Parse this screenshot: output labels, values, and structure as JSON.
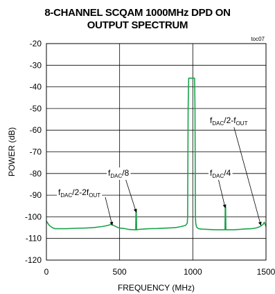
{
  "chart_data": {
    "type": "line",
    "title_lines": [
      "8-CHANNEL SCQAM 1000MHz DPD ON",
      "OUTPUT SPECTRUM"
    ],
    "corner_label": "toc07",
    "xlabel": "FREQUENCY (MHz)",
    "ylabel": "POWER (dB)",
    "xlim": [
      0,
      1500
    ],
    "ylim": [
      -120,
      -20
    ],
    "x_ticks": [
      0,
      500,
      1000,
      1500
    ],
    "y_ticks": [
      -20,
      -30,
      -40,
      -50,
      -60,
      -70,
      -80,
      -90,
      -100,
      -110,
      -120
    ],
    "grid": true,
    "series": [
      {
        "color": "#1aa24a",
        "x": [
          0,
          10,
          20,
          40,
          60,
          80,
          100,
          140,
          200,
          260,
          320,
          380,
          420,
          440,
          460,
          480,
          500,
          540,
          560,
          600,
          610,
          612,
          614,
          616,
          618,
          630,
          660,
          700,
          760,
          820,
          880,
          920,
          950,
          962,
          965,
          968,
          972,
          980,
          990,
          1000,
          1005,
          1012,
          1015,
          1018,
          1020,
          1025,
          1030,
          1040,
          1060,
          1100,
          1150,
          1180,
          1200,
          1215,
          1220,
          1222,
          1224,
          1226,
          1228,
          1240,
          1280,
          1320,
          1360,
          1400,
          1420,
          1440,
          1460,
          1470,
          1480,
          1488,
          1495,
          1500
        ],
        "y": [
          -102,
          -103,
          -104,
          -105,
          -105.5,
          -105.5,
          -105.5,
          -105.5,
          -105.3,
          -105.2,
          -105,
          -104.5,
          -104,
          -103.5,
          -104,
          -104.7,
          -105.2,
          -105.5,
          -105.8,
          -106,
          -106,
          -97,
          -97,
          -106,
          -106,
          -105.8,
          -105.7,
          -105.5,
          -105.4,
          -105.2,
          -105,
          -104.5,
          -104,
          -103,
          -100,
          -50,
          -36,
          -36,
          -36,
          -36,
          -36,
          -36,
          -50,
          -100,
          -103,
          -104.5,
          -105,
          -105.5,
          -105.7,
          -105.8,
          -106,
          -106,
          -106,
          -106,
          -106,
          -95,
          -95,
          -106,
          -106,
          -106,
          -106,
          -105.8,
          -105.6,
          -105.5,
          -105.3,
          -105,
          -104.5,
          -104,
          -103.5,
          -102.5,
          -103.5,
          -104.5
        ]
      }
    ],
    "annotations": [
      {
        "base": "f",
        "sub1": "DAC",
        "mid": "/2-2f",
        "sub2": "OUT",
        "arrow_to": [
          450,
          -104
        ]
      },
      {
        "base": "f",
        "sub1": "DAC",
        "mid": "/8",
        "sub2": "",
        "arrow_to": [
          614,
          -98
        ]
      },
      {
        "base": "f",
        "sub1": "DAC",
        "mid": "/4",
        "sub2": "",
        "arrow_to": [
          1222,
          -96
        ]
      },
      {
        "base": "f",
        "sub1": "DAC",
        "mid": "/2-f",
        "sub2": "OUT",
        "arrow_to": [
          1465,
          -104
        ]
      }
    ]
  }
}
